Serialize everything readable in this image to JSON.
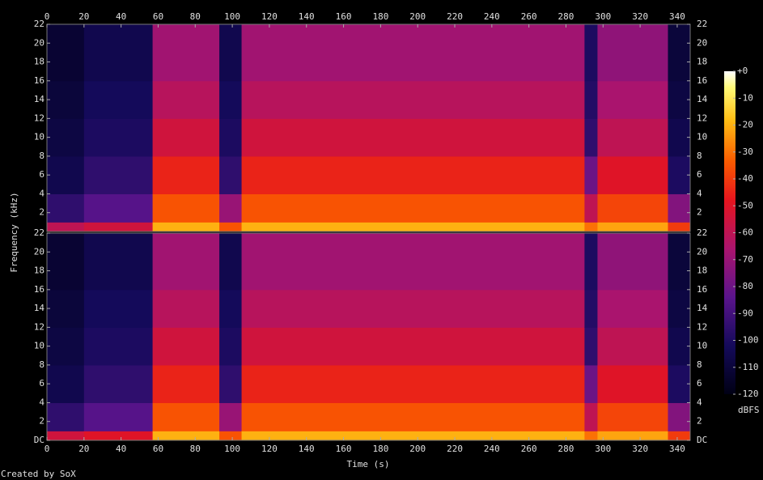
{
  "chart_data": [
    {
      "type": "heatmap",
      "x_bins": [
        0,
        20,
        57,
        93,
        105,
        290,
        297,
        335,
        347
      ],
      "y_bins": [
        0,
        1,
        4,
        8,
        12,
        16,
        22
      ],
      "values": [
        [
          -60,
          -95,
          -105,
          -108,
          -110,
          -112
        ],
        [
          -55,
          -85,
          -95,
          -100,
          -102,
          -105
        ],
        [
          -20,
          -35,
          -45,
          -55,
          -62,
          -68
        ],
        [
          -35,
          -70,
          -95,
          -100,
          -102,
          -105
        ],
        [
          -20,
          -35,
          -45,
          -55,
          -62,
          -68
        ],
        [
          -30,
          -60,
          -80,
          -95,
          -98,
          -100
        ],
        [
          -22,
          -38,
          -50,
          -60,
          -66,
          -72
        ],
        [
          -40,
          -75,
          -100,
          -105,
          -108,
          -110
        ]
      ],
      "xlim": [
        0,
        347
      ],
      "xticks": [
        0,
        20,
        40,
        60,
        80,
        100,
        120,
        140,
        160,
        180,
        200,
        220,
        240,
        260,
        280,
        300,
        320,
        340
      ],
      "ylim": [
        0,
        22
      ],
      "yticks": [
        2,
        4,
        6,
        8,
        10,
        12,
        14,
        16,
        18,
        20,
        22
      ],
      "ylabel": "Frequency (kHz)"
    },
    {
      "type": "heatmap",
      "x_bins": [
        0,
        20,
        57,
        93,
        105,
        290,
        297,
        335,
        347
      ],
      "y_bins": [
        0,
        1,
        4,
        8,
        12,
        16,
        22
      ],
      "values": [
        [
          -55,
          -95,
          -105,
          -108,
          -110,
          -112
        ],
        [
          -50,
          -85,
          -95,
          -100,
          -102,
          -105
        ],
        [
          -20,
          -35,
          -45,
          -55,
          -62,
          -68
        ],
        [
          -35,
          -70,
          -95,
          -100,
          -102,
          -105
        ],
        [
          -20,
          -35,
          -45,
          -55,
          -62,
          -68
        ],
        [
          -30,
          -60,
          -80,
          -95,
          -98,
          -100
        ],
        [
          -22,
          -38,
          -50,
          -60,
          -66,
          -72
        ],
        [
          -40,
          -75,
          -100,
          -105,
          -108,
          -110
        ]
      ],
      "xlim": [
        0,
        347
      ],
      "xticks": [
        0,
        20,
        40,
        60,
        80,
        100,
        120,
        140,
        160,
        180,
        200,
        220,
        240,
        260,
        280,
        300,
        320,
        340
      ],
      "ylim": [
        0,
        22
      ],
      "yticks": [
        {
          "value": 0,
          "label": "DC"
        },
        2,
        4,
        6,
        8,
        10,
        12,
        14,
        16,
        18,
        20,
        22
      ],
      "xlabel": "Time (s)"
    }
  ],
  "colorbar": {
    "label": "dBFS",
    "lim": [
      -120,
      0
    ],
    "ticks": [
      {
        "value": 0,
        "label": "+0"
      },
      -10,
      -20,
      -30,
      -40,
      -50,
      -60,
      -70,
      -80,
      -90,
      -100,
      -110,
      -120
    ]
  },
  "footer": "Created by SoX"
}
